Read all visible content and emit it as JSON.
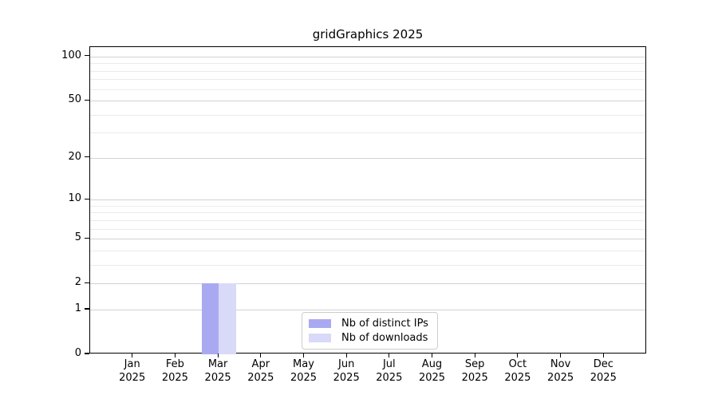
{
  "chart_data": {
    "type": "bar",
    "title": "gridGraphics 2025",
    "categories": [
      "Jan 2025",
      "Feb 2025",
      "Mar 2025",
      "Apr 2025",
      "May 2025",
      "Jun 2025",
      "Jul 2025",
      "Aug 2025",
      "Sep 2025",
      "Oct 2025",
      "Nov 2025",
      "Dec 2025"
    ],
    "month_labels": [
      "Jan",
      "Feb",
      "Mar",
      "Apr",
      "May",
      "Jun",
      "Jul",
      "Aug",
      "Sep",
      "Oct",
      "Nov",
      "Dec"
    ],
    "year_label": "2025",
    "series": [
      {
        "name": "Nb of distinct IPs",
        "color": "#a9a9f2",
        "values": [
          0,
          0,
          2,
          0,
          0,
          0,
          0,
          0,
          0,
          0,
          0,
          0
        ]
      },
      {
        "name": "Nb of downloads",
        "color": "#d9d9f9",
        "values": [
          0,
          0,
          2,
          0,
          0,
          0,
          0,
          0,
          0,
          0,
          0,
          0
        ]
      }
    ],
    "xlabel": "",
    "ylabel": "",
    "y_axis": {
      "scale": "log1p",
      "major_ticks": [
        0,
        1,
        2,
        5,
        10,
        20,
        50,
        100
      ],
      "minor_gridlines": [
        3,
        4,
        6,
        7,
        8,
        9,
        30,
        40,
        60,
        70,
        80,
        90
      ],
      "ylim": [
        0,
        116
      ]
    },
    "grid": {
      "show": true,
      "major_color": "#d2d2d2",
      "minor_color": "#ebebeb"
    },
    "legend": {
      "position": "bottom-center"
    },
    "colors": {
      "axis": "#000000",
      "background": "#ffffff"
    }
  }
}
